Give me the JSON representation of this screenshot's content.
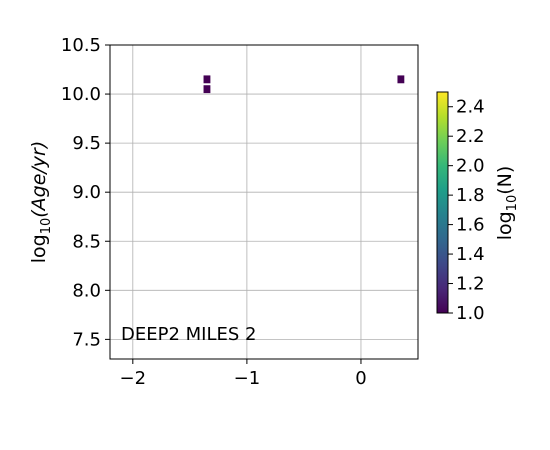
{
  "chart_data": {
    "type": "heatmap",
    "title": "",
    "annotation": "DEEP2 MILES 2",
    "xlabel": "",
    "ylabel_base": "log",
    "ylabel_sub": "10",
    "ylabel_arg": "(Age/yr)",
    "xlim": [
      -2.2,
      0.5
    ],
    "ylim": [
      7.3,
      10.5
    ],
    "xticks": [
      -2,
      -1,
      0
    ],
    "xtick_labels": [
      "−2",
      "−1",
      "0"
    ],
    "yticks": [
      7.5,
      8.0,
      8.5,
      9.0,
      9.5,
      10.0,
      10.5
    ],
    "ytick_labels": [
      "7.5",
      "8.0",
      "8.5",
      "9.0",
      "9.5",
      "10.0",
      "10.5"
    ],
    "grid": true,
    "cell_width": 0.06,
    "cell_height": 0.08,
    "cells": [
      {
        "x": -1.35,
        "y": 10.15,
        "value": 1.0
      },
      {
        "x": -1.35,
        "y": 10.05,
        "value": 1.0
      },
      {
        "x": 0.35,
        "y": 10.15,
        "value": 1.0
      }
    ],
    "colorbar": {
      "label_base": "log",
      "label_sub": "10",
      "label_arg": "(N)",
      "range": [
        1.0,
        2.5
      ],
      "ticks": [
        1.0,
        1.2,
        1.4,
        1.6,
        1.8,
        2.0,
        2.2,
        2.4
      ],
      "tick_labels": [
        "1.0",
        "1.2",
        "1.4",
        "1.6",
        "1.8",
        "2.0",
        "2.2",
        "2.4"
      ],
      "colormap": [
        "#440154",
        "#482878",
        "#3e4989",
        "#31688e",
        "#26828e",
        "#1f9e89",
        "#35b779",
        "#6ece58",
        "#b5de2b",
        "#fde725"
      ]
    }
  }
}
